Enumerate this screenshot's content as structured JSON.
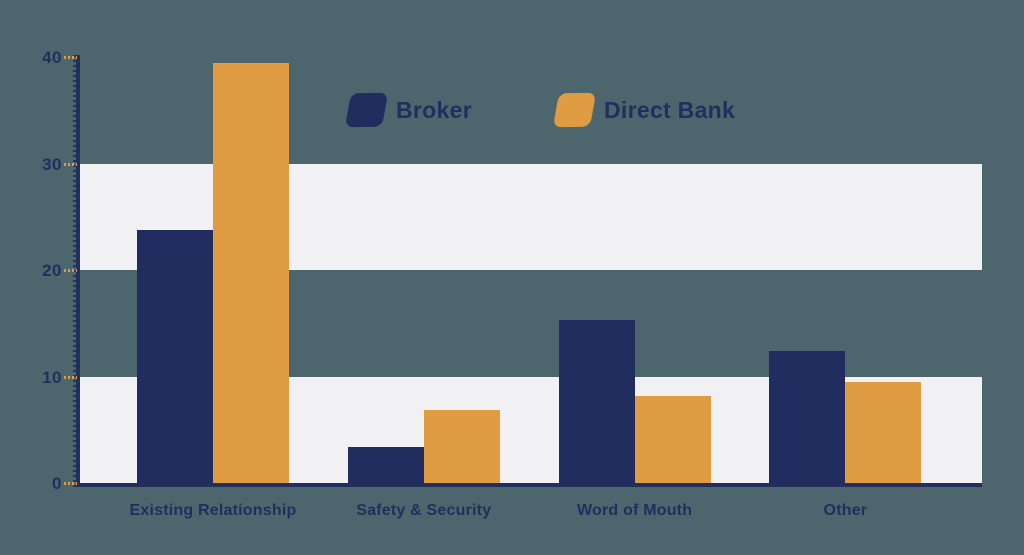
{
  "chart_data": {
    "type": "bar",
    "title": "",
    "xlabel": "",
    "ylabel": "",
    "categories": [
      "Existing Relationship",
      "Safety & Security",
      "Word of Mouth",
      "Other"
    ],
    "series": [
      {
        "name": "Broker",
        "color": "#202d5e",
        "values": [
          23.8,
          3.4,
          15.3,
          12.4
        ]
      },
      {
        "name": "Direct Bank",
        "color": "#df9c42",
        "values": [
          39.4,
          6.9,
          8.2,
          9.5
        ]
      }
    ],
    "ylim": [
      0,
      40
    ],
    "yticks": [
      0,
      10,
      20,
      30,
      40
    ],
    "grid": "horizontal-bands",
    "bands": [
      [
        0,
        10
      ],
      [
        20,
        30
      ]
    ],
    "band_color": "#f1f1f3",
    "background_color": "#4d666e",
    "axis_color": "#222e5c",
    "tick_dash_color": "#df9c42",
    "text_color": "#222f5e",
    "legend_position": "top-center"
  }
}
